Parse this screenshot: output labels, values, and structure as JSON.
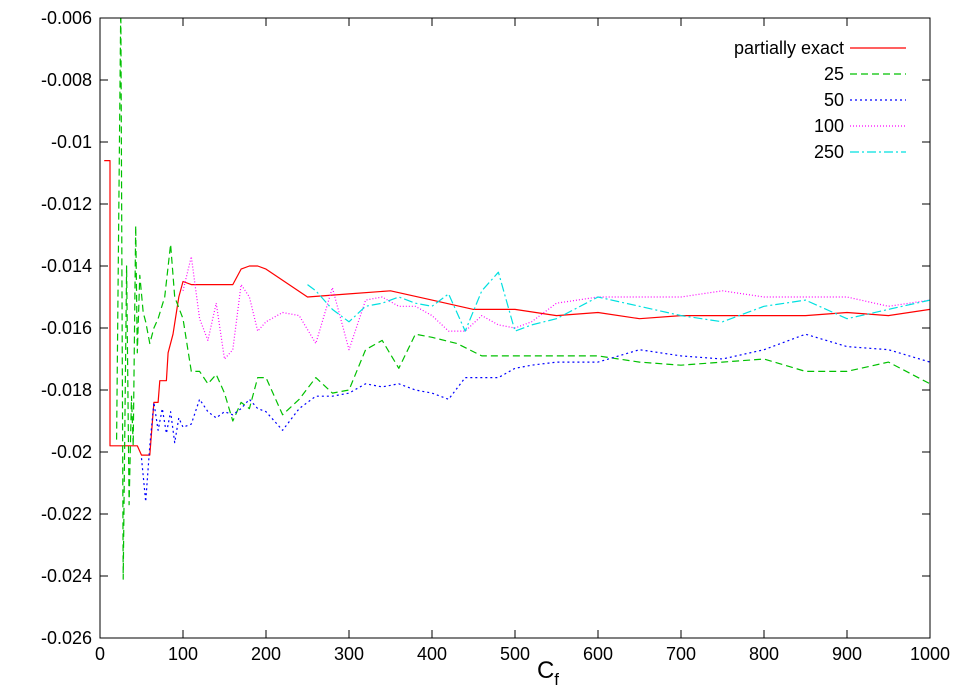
{
  "chart_data": {
    "type": "line",
    "xlabel": "C",
    "xlabel_subscript": "f",
    "ylabel": "",
    "title": "",
    "xlim": [
      0,
      1000
    ],
    "ylim": [
      -0.026,
      -0.006
    ],
    "x_ticks": [
      0,
      100,
      200,
      300,
      400,
      500,
      600,
      700,
      800,
      900,
      1000
    ],
    "x_tick_labels": [
      "0",
      "100",
      "200",
      "300",
      "400",
      "500",
      "600",
      "700",
      "800",
      "900",
      "1000"
    ],
    "y_ticks": [
      -0.026,
      -0.024,
      -0.022,
      -0.02,
      -0.018,
      -0.016,
      -0.014,
      -0.012,
      -0.01,
      -0.008,
      -0.006
    ],
    "y_tick_labels": [
      "-0.026",
      "-0.024",
      "-0.022",
      "-0.02",
      "-0.018",
      "-0.016",
      "-0.014",
      "-0.012",
      "-0.01",
      "-0.008",
      "-0.006"
    ],
    "grid": false,
    "legend_position": "top-right",
    "series": [
      {
        "name": "partially exact",
        "color": "#ff0000",
        "dash": "",
        "points": [
          [
            5,
            -0.0106
          ],
          [
            12,
            -0.0106
          ],
          [
            12,
            -0.0198
          ],
          [
            30,
            -0.0198
          ],
          [
            45,
            -0.0198
          ],
          [
            50,
            -0.0201
          ],
          [
            60,
            -0.0201
          ],
          [
            65,
            -0.0184
          ],
          [
            70,
            -0.0184
          ],
          [
            72,
            -0.0177
          ],
          [
            80,
            -0.0177
          ],
          [
            82,
            -0.0168
          ],
          [
            88,
            -0.0162
          ],
          [
            95,
            -0.015
          ],
          [
            100,
            -0.0145
          ],
          [
            110,
            -0.0146
          ],
          [
            150,
            -0.0146
          ],
          [
            160,
            -0.0146
          ],
          [
            170,
            -0.0141
          ],
          [
            180,
            -0.014
          ],
          [
            190,
            -0.014
          ],
          [
            200,
            -0.0141
          ],
          [
            250,
            -0.015
          ],
          [
            300,
            -0.0149
          ],
          [
            350,
            -0.0148
          ],
          [
            400,
            -0.0151
          ],
          [
            450,
            -0.0154
          ],
          [
            500,
            -0.0154
          ],
          [
            550,
            -0.0156
          ],
          [
            600,
            -0.0155
          ],
          [
            650,
            -0.0157
          ],
          [
            700,
            -0.0156
          ],
          [
            750,
            -0.0156
          ],
          [
            800,
            -0.0156
          ],
          [
            850,
            -0.0156
          ],
          [
            900,
            -0.0155
          ],
          [
            950,
            -0.0156
          ],
          [
            1000,
            -0.0154
          ]
        ]
      },
      {
        "name": "25",
        "color": "#00c000",
        "dash": "7,4",
        "points": [
          [
            20,
            -0.0196
          ],
          [
            25,
            -0.0055
          ],
          [
            28,
            -0.0241
          ],
          [
            32,
            -0.014
          ],
          [
            35,
            -0.0217
          ],
          [
            38,
            -0.0182
          ],
          [
            40,
            -0.0198
          ],
          [
            43,
            -0.0127
          ],
          [
            45,
            -0.0168
          ],
          [
            48,
            -0.0143
          ],
          [
            52,
            -0.0155
          ],
          [
            55,
            -0.0158
          ],
          [
            60,
            -0.0165
          ],
          [
            65,
            -0.016
          ],
          [
            70,
            -0.0157
          ],
          [
            78,
            -0.015
          ],
          [
            85,
            -0.0133
          ],
          [
            90,
            -0.015
          ],
          [
            100,
            -0.0157
          ],
          [
            110,
            -0.0174
          ],
          [
            120,
            -0.0174
          ],
          [
            130,
            -0.0178
          ],
          [
            140,
            -0.0175
          ],
          [
            150,
            -0.0181
          ],
          [
            160,
            -0.019
          ],
          [
            170,
            -0.0184
          ],
          [
            180,
            -0.0186
          ],
          [
            190,
            -0.0176
          ],
          [
            200,
            -0.0176
          ],
          [
            210,
            -0.0182
          ],
          [
            220,
            -0.0188
          ],
          [
            240,
            -0.0183
          ],
          [
            260,
            -0.0176
          ],
          [
            280,
            -0.0181
          ],
          [
            300,
            -0.018
          ],
          [
            320,
            -0.0167
          ],
          [
            340,
            -0.0164
          ],
          [
            360,
            -0.0173
          ],
          [
            380,
            -0.0162
          ],
          [
            400,
            -0.0163
          ],
          [
            430,
            -0.0165
          ],
          [
            460,
            -0.0169
          ],
          [
            500,
            -0.0169
          ],
          [
            550,
            -0.0169
          ],
          [
            600,
            -0.0169
          ],
          [
            650,
            -0.0171
          ],
          [
            700,
            -0.0172
          ],
          [
            750,
            -0.0171
          ],
          [
            800,
            -0.017
          ],
          [
            850,
            -0.0174
          ],
          [
            900,
            -0.0174
          ],
          [
            950,
            -0.0171
          ],
          [
            1000,
            -0.0178
          ]
        ]
      },
      {
        "name": "50",
        "color": "#0000ff",
        "dash": "2,3",
        "points": [
          [
            50,
            -0.0202
          ],
          [
            55,
            -0.0216
          ],
          [
            60,
            -0.0198
          ],
          [
            65,
            -0.0184
          ],
          [
            70,
            -0.0193
          ],
          [
            75,
            -0.0186
          ],
          [
            80,
            -0.0194
          ],
          [
            85,
            -0.0187
          ],
          [
            90,
            -0.0197
          ],
          [
            95,
            -0.0189
          ],
          [
            100,
            -0.0192
          ],
          [
            110,
            -0.0191
          ],
          [
            120,
            -0.0183
          ],
          [
            130,
            -0.0187
          ],
          [
            140,
            -0.0189
          ],
          [
            150,
            -0.0187
          ],
          [
            160,
            -0.0188
          ],
          [
            170,
            -0.0186
          ],
          [
            180,
            -0.0183
          ],
          [
            190,
            -0.0186
          ],
          [
            200,
            -0.0187
          ],
          [
            220,
            -0.0193
          ],
          [
            240,
            -0.0186
          ],
          [
            260,
            -0.0182
          ],
          [
            280,
            -0.0182
          ],
          [
            300,
            -0.0181
          ],
          [
            320,
            -0.0178
          ],
          [
            340,
            -0.0179
          ],
          [
            360,
            -0.0178
          ],
          [
            380,
            -0.018
          ],
          [
            400,
            -0.0181
          ],
          [
            420,
            -0.0183
          ],
          [
            440,
            -0.0176
          ],
          [
            460,
            -0.0176
          ],
          [
            480,
            -0.0176
          ],
          [
            500,
            -0.0173
          ],
          [
            520,
            -0.0172
          ],
          [
            550,
            -0.0171
          ],
          [
            600,
            -0.0171
          ],
          [
            650,
            -0.0167
          ],
          [
            700,
            -0.0169
          ],
          [
            750,
            -0.017
          ],
          [
            800,
            -0.0167
          ],
          [
            850,
            -0.0162
          ],
          [
            900,
            -0.0166
          ],
          [
            950,
            -0.0167
          ],
          [
            1000,
            -0.0171
          ]
        ]
      },
      {
        "name": "100",
        "color": "#ff00ff",
        "dash": "1,2",
        "points": [
          [
            100,
            -0.0148
          ],
          [
            110,
            -0.0137
          ],
          [
            120,
            -0.0157
          ],
          [
            130,
            -0.0164
          ],
          [
            140,
            -0.0152
          ],
          [
            150,
            -0.017
          ],
          [
            160,
            -0.0167
          ],
          [
            170,
            -0.0146
          ],
          [
            180,
            -0.015
          ],
          [
            190,
            -0.0161
          ],
          [
            200,
            -0.0158
          ],
          [
            220,
            -0.0155
          ],
          [
            240,
            -0.0156
          ],
          [
            260,
            -0.0165
          ],
          [
            280,
            -0.0147
          ],
          [
            300,
            -0.0167
          ],
          [
            320,
            -0.0151
          ],
          [
            340,
            -0.015
          ],
          [
            360,
            -0.0153
          ],
          [
            380,
            -0.0153
          ],
          [
            400,
            -0.0156
          ],
          [
            420,
            -0.0161
          ],
          [
            440,
            -0.0161
          ],
          [
            460,
            -0.0156
          ],
          [
            480,
            -0.0159
          ],
          [
            500,
            -0.016
          ],
          [
            520,
            -0.0158
          ],
          [
            550,
            -0.0152
          ],
          [
            600,
            -0.015
          ],
          [
            650,
            -0.015
          ],
          [
            700,
            -0.015
          ],
          [
            750,
            -0.0148
          ],
          [
            800,
            -0.015
          ],
          [
            850,
            -0.015
          ],
          [
            900,
            -0.015
          ],
          [
            950,
            -0.0153
          ],
          [
            1000,
            -0.0151
          ]
        ]
      },
      {
        "name": "250",
        "color": "#00e0e0",
        "dash": "9,3,2,3",
        "points": [
          [
            250,
            -0.0146
          ],
          [
            260,
            -0.0148
          ],
          [
            280,
            -0.0154
          ],
          [
            300,
            -0.0158
          ],
          [
            320,
            -0.0153
          ],
          [
            340,
            -0.0152
          ],
          [
            360,
            -0.015
          ],
          [
            380,
            -0.0152
          ],
          [
            400,
            -0.0153
          ],
          [
            420,
            -0.0149
          ],
          [
            440,
            -0.0161
          ],
          [
            460,
            -0.0148
          ],
          [
            480,
            -0.0142
          ],
          [
            500,
            -0.0161
          ],
          [
            520,
            -0.0159
          ],
          [
            550,
            -0.0157
          ],
          [
            600,
            -0.015
          ],
          [
            650,
            -0.0153
          ],
          [
            700,
            -0.0156
          ],
          [
            750,
            -0.0158
          ],
          [
            800,
            -0.0153
          ],
          [
            850,
            -0.0151
          ],
          [
            900,
            -0.0157
          ],
          [
            950,
            -0.0154
          ],
          [
            1000,
            -0.0151
          ]
        ]
      }
    ]
  }
}
